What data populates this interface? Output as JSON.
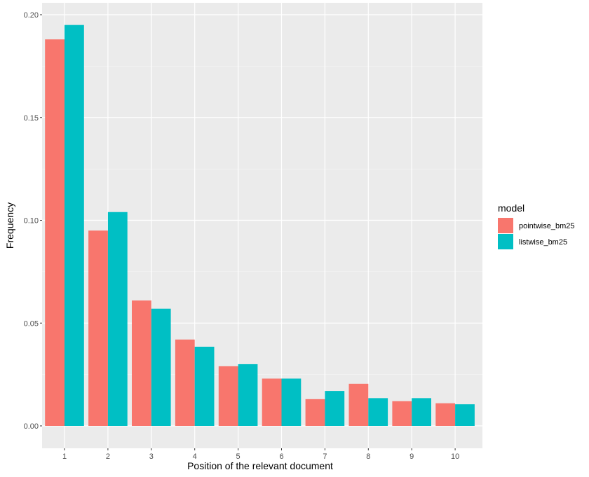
{
  "chart_data": {
    "type": "bar",
    "title": "",
    "xlabel": "Position of the relevant document",
    "ylabel": "Frequency",
    "categories": [
      "1",
      "2",
      "3",
      "4",
      "5",
      "6",
      "7",
      "8",
      "9",
      "10"
    ],
    "ylim": [
      0,
      0.2
    ],
    "yticks": [
      0.0,
      0.05,
      0.1,
      0.15,
      0.2
    ],
    "ytick_labels": [
      "0.00",
      "0.05",
      "0.10",
      "0.15",
      "0.20"
    ],
    "grid": true,
    "legend": {
      "title": "model",
      "position": "right"
    },
    "series": [
      {
        "name": "pointwise_bm25",
        "color": "#F8766D",
        "values": [
          0.188,
          0.095,
          0.061,
          0.042,
          0.029,
          0.023,
          0.013,
          0.0205,
          0.012,
          0.011
        ]
      },
      {
        "name": "listwise_bm25",
        "color": "#00BFC4",
        "values": [
          0.195,
          0.104,
          0.057,
          0.0385,
          0.03,
          0.023,
          0.017,
          0.0135,
          0.0135,
          0.0105
        ]
      }
    ]
  },
  "colors": {
    "panel_background": "#EBEBEB",
    "grid_major": "#FFFFFF",
    "tick_text": "#4D4D4D"
  }
}
